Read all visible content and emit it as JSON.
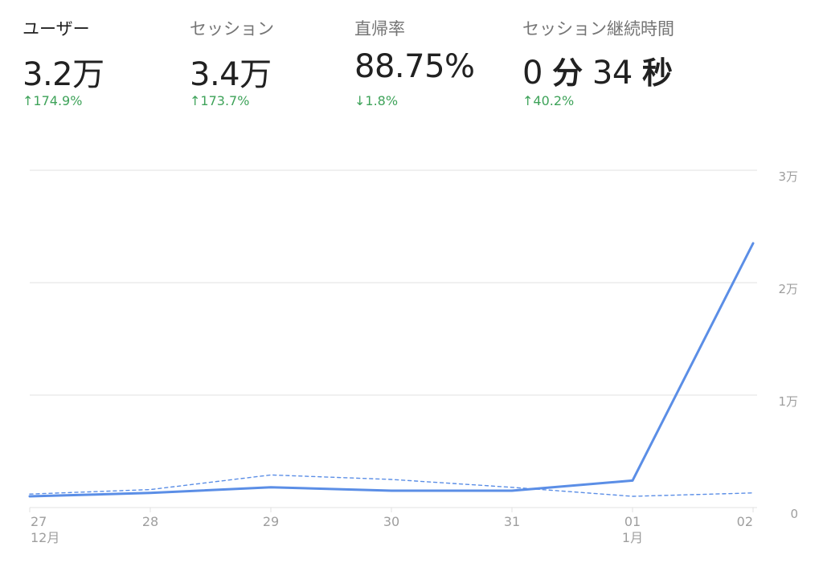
{
  "colors": {
    "primary_line": "#5b8ee6",
    "compare_line": "#5b8ee6",
    "grid": "#e0e0e0",
    "axis_text": "#9e9e9e",
    "positive": "#3fa35a",
    "label_selected": "#212121",
    "label_default": "#757575"
  },
  "metrics": [
    {
      "label": "ユーザー",
      "value": "3.2万",
      "change": "174.9%",
      "direction": "up",
      "arrow": "↑",
      "selected": true
    },
    {
      "label": "セッション",
      "value": "3.4万",
      "change": "173.7%",
      "direction": "up",
      "arrow": "↑",
      "selected": false
    },
    {
      "label": "直帰率",
      "value": "88.75%",
      "change": "1.8%",
      "direction": "down",
      "arrow": "↓",
      "selected": false
    },
    {
      "label": "セッション継続時間",
      "value_parts": [
        "0",
        "分",
        "34",
        "秒"
      ],
      "change": "40.2%",
      "direction": "up",
      "arrow": "↑",
      "selected": false
    }
  ],
  "chart_data": {
    "type": "line",
    "categories": [
      "27",
      "28",
      "29",
      "30",
      "31",
      "01",
      "02"
    ],
    "category_sublabels": [
      "12月",
      "",
      "",
      "",
      "",
      "1月",
      ""
    ],
    "series": [
      {
        "values": [
          1000,
          1300,
          1800,
          1500,
          1500,
          2400,
          23500
        ],
        "style": "solid"
      },
      {
        "values": [
          1200,
          1600,
          2900,
          2500,
          1800,
          1000,
          1300
        ],
        "style": "dashed"
      }
    ],
    "yticks": [
      0,
      10000,
      20000,
      30000
    ],
    "ytick_labels": [
      "0",
      "1万",
      "2万",
      "3万"
    ],
    "ylim": [
      0,
      30000
    ],
    "grid": true,
    "yaxis_position": "right"
  }
}
